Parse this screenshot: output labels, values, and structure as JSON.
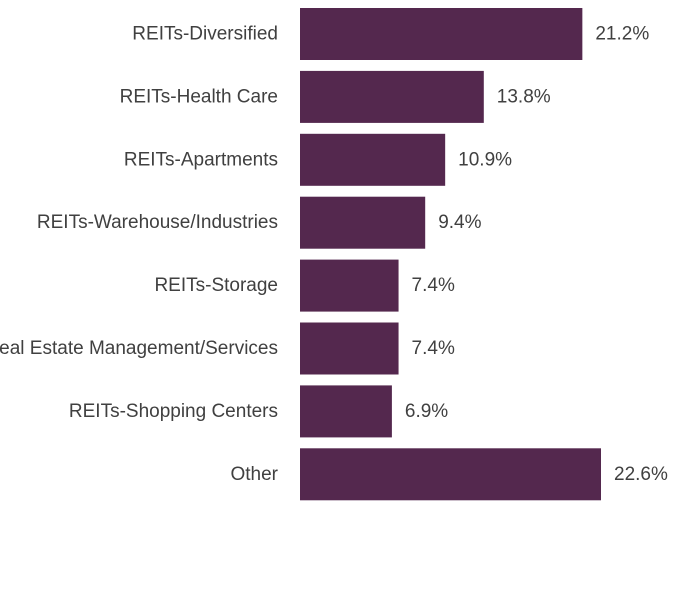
{
  "chart_data": {
    "type": "bar",
    "orientation": "horizontal",
    "categories": [
      "REITs-Diversified",
      "REITs-Health Care",
      "REITs-Apartments",
      "REITs-Warehouse/Industries",
      "REITs-Storage",
      "Real Estate Management/Services",
      "REITs-Shopping Centers",
      "Other"
    ],
    "values": [
      21.2,
      13.8,
      10.9,
      9.4,
      7.4,
      7.4,
      6.9,
      22.6
    ],
    "value_labels": [
      "21.2%",
      "13.8%",
      "10.9%",
      "9.4%",
      "7.4%",
      "7.4%",
      "6.9%",
      "22.6%"
    ],
    "title": "",
    "xlabel": "",
    "ylabel": "",
    "xlim": [
      0,
      22.6
    ],
    "grid": false,
    "legend": "none",
    "bar_color": "#54284e",
    "text_color": "#404040"
  }
}
